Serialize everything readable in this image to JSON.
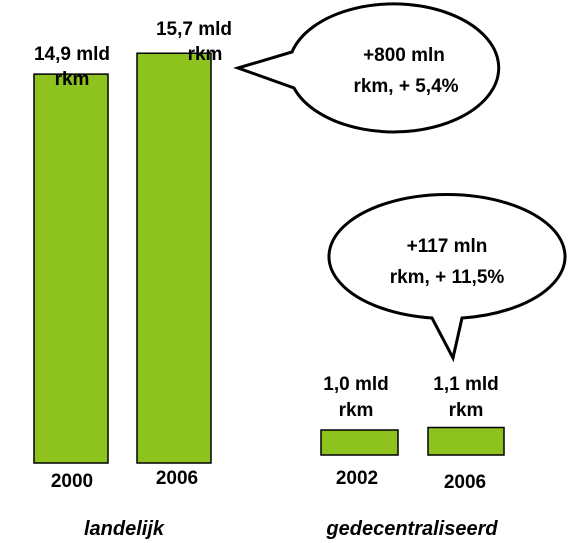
{
  "chart_data": {
    "type": "bar",
    "unit": "mld rkm",
    "groups": [
      {
        "name": "landelijk",
        "bars": [
          {
            "year": "2000",
            "value": 14.9,
            "label_lines": [
              "14,9 mld",
              "rkm"
            ]
          },
          {
            "year": "2006",
            "value": 15.7,
            "label_lines": [
              "15,7 mld",
              "rkm"
            ]
          }
        ],
        "callout_lines": [
          "+800 mln",
          "rkm, + 5,4%"
        ]
      },
      {
        "name": "gedecentraliseerd",
        "bars": [
          {
            "year": "2002",
            "value": 1.0,
            "label_lines": [
              "1,0 mld",
              "rkm"
            ]
          },
          {
            "year": "2006",
            "value": 1.1,
            "label_lines": [
              "1,1 mld",
              "rkm"
            ]
          }
        ],
        "callout_lines": [
          "+117 mln",
          "rkm, + 11,5%"
        ]
      }
    ],
    "bar_color": "#8dc21f",
    "bar_outline": "#000000"
  }
}
